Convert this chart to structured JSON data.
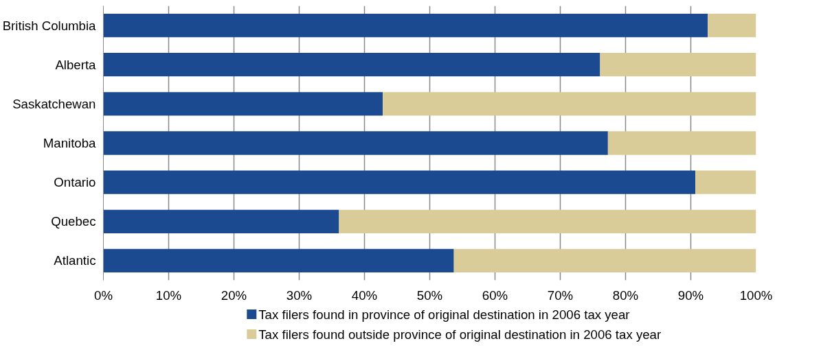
{
  "chart_data": {
    "type": "bar",
    "orientation": "horizontal",
    "stacked": true,
    "categories": [
      "British Columbia",
      "Alberta",
      "Saskatchewan",
      "Manitoba",
      "Ontario",
      "Quebec",
      "Atlantic"
    ],
    "series": [
      {
        "name": "Tax filers found in province of original destination in 2006 tax year",
        "color": "#1b4a90",
        "values": [
          92.6,
          76.1,
          42.8,
          77.3,
          90.7,
          36.1,
          53.7
        ]
      },
      {
        "name": "Tax filers found outside province of original destination in 2006 tax year",
        "color": "#dacc99",
        "values": [
          7.4,
          23.9,
          57.2,
          22.7,
          9.3,
          63.9,
          46.3
        ]
      }
    ],
    "xlim": [
      0,
      100
    ],
    "xticks": [
      {
        "value": 0,
        "label": "0%"
      },
      {
        "value": 10,
        "label": "10%"
      },
      {
        "value": 20,
        "label": "20%"
      },
      {
        "value": 30,
        "label": "30%"
      },
      {
        "value": 40,
        "label": "40%"
      },
      {
        "value": 50,
        "label": "50%"
      },
      {
        "value": 60,
        "label": "60%"
      },
      {
        "value": 70,
        "label": "70%"
      },
      {
        "value": 80,
        "label": "80%"
      },
      {
        "value": 90,
        "label": "90%"
      },
      {
        "value": 100,
        "label": "100%"
      }
    ],
    "grid": "x",
    "legend": "bottom"
  }
}
